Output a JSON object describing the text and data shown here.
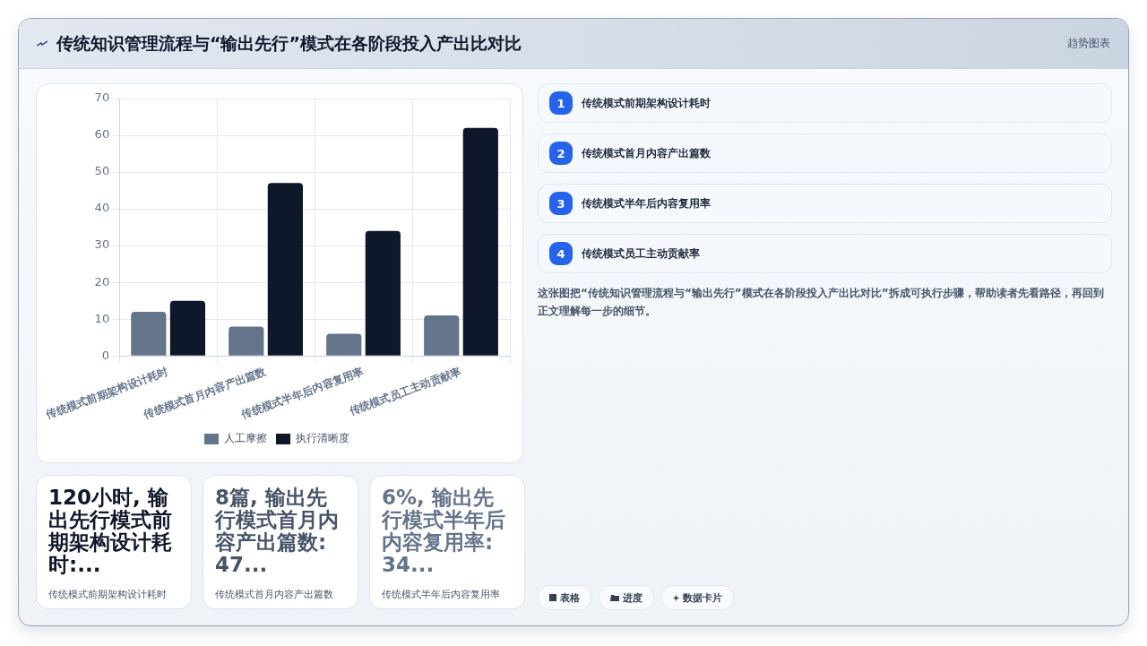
{
  "chart_data": {
    "type": "bar",
    "title": "传统知识管理流程与“输出先行”模式在各阶段投入产出比对比",
    "categories": [
      "传统模式前期架构设计耗时",
      "传统模式首月内容产出篇数",
      "传统模式半年后内容复用率",
      "传统模式员工主动贡献率"
    ],
    "series": [
      {
        "name": "人工摩擦",
        "color": "#64748b",
        "values": [
          12,
          8,
          6,
          11
        ]
      },
      {
        "name": "执行清晰度",
        "color": "#0f172a",
        "values": [
          15,
          47,
          34,
          62
        ]
      }
    ],
    "ylim": [
      0,
      70
    ],
    "yticks": [
      0,
      10,
      20,
      30,
      40,
      50,
      60,
      70
    ],
    "grid": true,
    "legend": "bottom",
    "annotations": [
      "趋势图表",
      "1",
      "传统模式前期架构设计耗时",
      "2",
      "传统模式首月内容产出篇数",
      "3",
      "传统模式半年后内容复用率",
      "4",
      "传统模式员工主动贡献率",
      "这张图把“传统知识管理流程与“输出先行”模式在各阶段投入产出比对比”拆成可执行步骤，帮助读者先看路径，再回到正文理解每一步的细节。",
      "120小时, 输出先行模式前期架构设计耗时:...",
      "传统模式前期架构设计耗时",
      "8篇, 输出先行模式首月内容产出篇数: 47...",
      "传统模式首月内容产出篇数",
      "6%, 输出先行模式半年后内容复用率: 34...",
      "传统模式半年后内容复用率",
      "表格",
      "进度",
      "数据卡片"
    ]
  }
}
